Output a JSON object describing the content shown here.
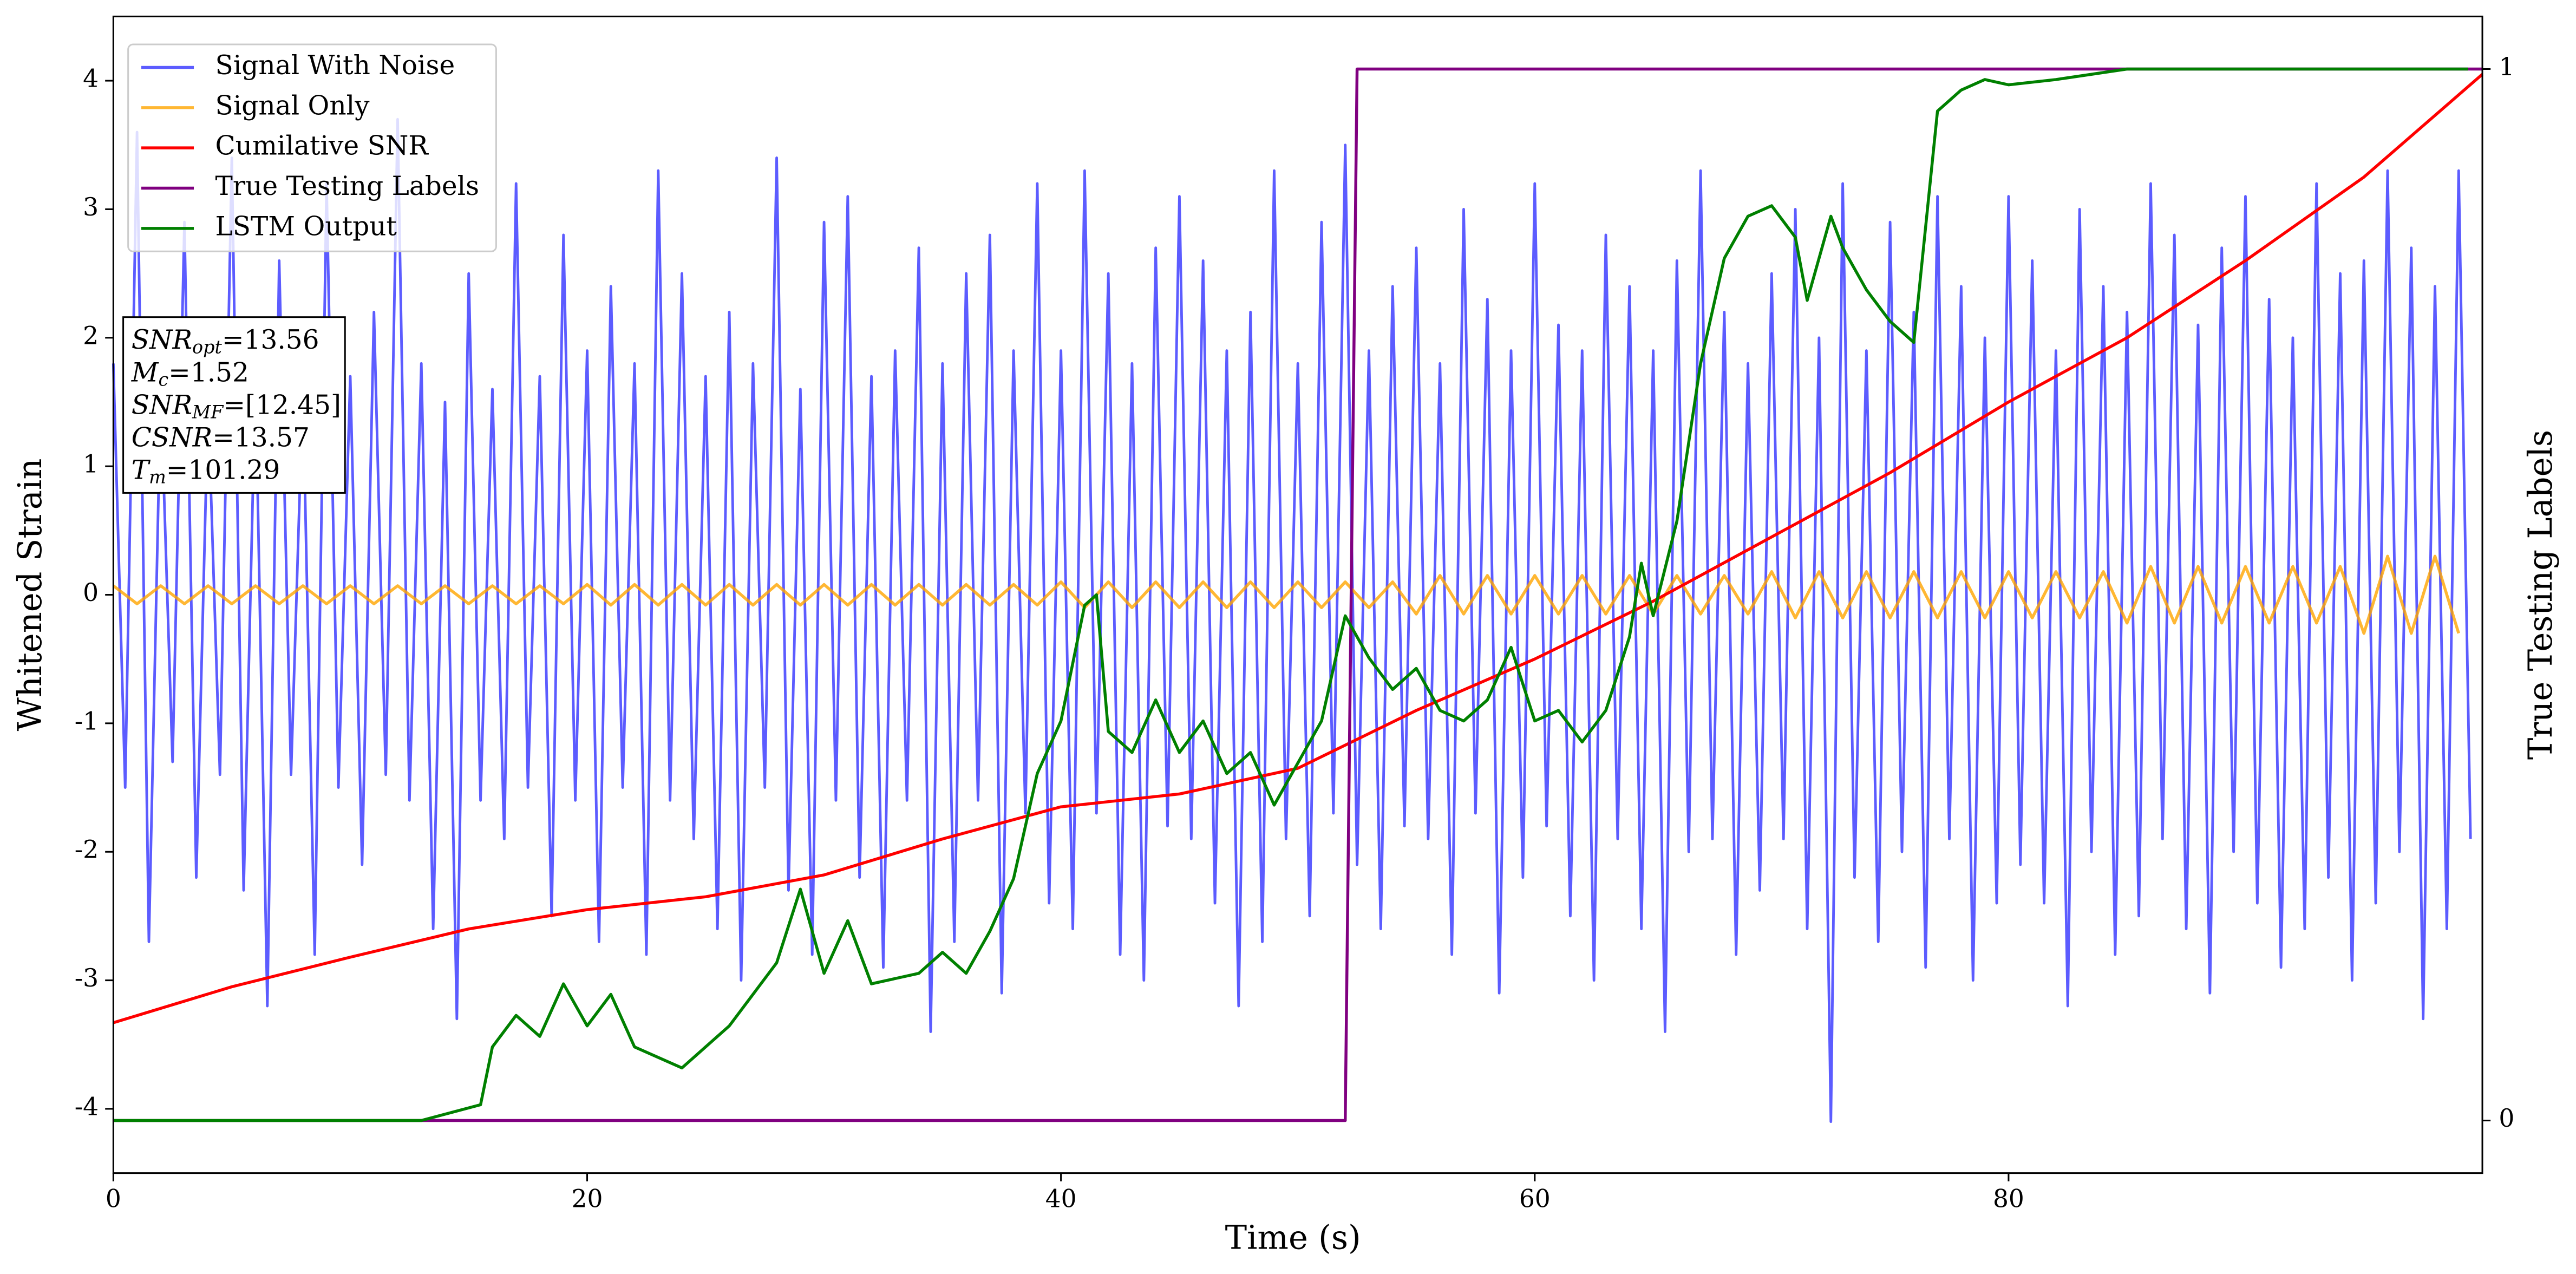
{
  "chart_data": {
    "type": "line",
    "xlabel": "Time (s)",
    "ylabel": "Whitened Strain",
    "y2label": "True Testing Labels",
    "xlim": [
      0,
      100
    ],
    "xticks": [
      0,
      20,
      40,
      60,
      80
    ],
    "ylim": [
      -4.5,
      4.5
    ],
    "yticks": [
      -4,
      -3,
      -2,
      -1,
      0,
      1,
      2,
      3,
      4
    ],
    "y2lim": [
      -0.05,
      1.05
    ],
    "y2ticks": [
      0,
      1
    ],
    "legend": "upper left",
    "annotation": [
      {
        "name": "SNR",
        "subscript": "opt",
        "value": "=13.56"
      },
      {
        "name": "M",
        "subscript": "c",
        "value": "=1.52"
      },
      {
        "name": "SNR",
        "subscript": "MF",
        "value": "=[12.45]"
      },
      {
        "name": "CSNR",
        "subscript": null,
        "value": "=13.57"
      },
      {
        "name": "T",
        "subscript": "m",
        "value": "=101.29"
      }
    ],
    "series": [
      {
        "name": "Signal With Noise",
        "color": "#3333ff",
        "x": [
          0,
          0.5,
          1,
          1.5,
          2,
          2.5,
          3,
          3.5,
          4,
          4.5,
          5,
          5.5,
          6,
          6.5,
          7,
          7.5,
          8,
          8.5,
          9,
          9.5,
          10,
          10.5,
          11,
          11.5,
          12,
          12.5,
          13,
          13.5,
          14,
          14.5,
          15,
          15.5,
          16,
          16.5,
          17,
          17.5,
          18,
          18.5,
          19,
          19.5,
          20,
          20.5,
          21,
          21.5,
          22,
          22.5,
          23,
          23.5,
          24,
          24.5,
          25,
          25.5,
          26,
          26.5,
          27,
          27.5,
          28,
          28.5,
          29,
          29.5,
          30,
          30.5,
          31,
          31.5,
          32,
          32.5,
          33,
          33.5,
          34,
          34.5,
          35,
          35.5,
          36,
          36.5,
          37,
          37.5,
          38,
          38.5,
          39,
          39.5,
          40,
          40.5,
          41,
          41.5,
          42,
          42.5,
          43,
          43.5,
          44,
          44.5,
          45,
          45.5,
          46,
          46.5,
          47,
          47.5,
          48,
          48.5,
          49,
          49.5,
          50,
          50.5,
          51,
          51.5,
          52,
          52.5,
          53,
          53.5,
          54,
          54.5,
          55,
          55.5,
          56,
          56.5,
          57,
          57.5,
          58,
          58.5,
          59,
          59.5,
          60,
          60.5,
          61,
          61.5,
          62,
          62.5,
          63,
          63.5,
          64,
          64.5,
          65,
          65.5,
          66,
          66.5,
          67,
          67.5,
          68,
          68.5,
          69,
          69.5,
          70,
          70.5,
          71,
          71.5,
          72,
          72.5,
          73,
          73.5,
          74,
          74.5,
          75,
          75.5,
          76,
          76.5,
          77,
          77.5,
          78,
          78.5,
          79,
          79.5,
          80,
          80.5,
          81,
          81.5,
          82,
          82.5,
          83,
          83.5,
          84,
          84.5,
          85,
          85.5,
          86,
          86.5,
          87,
          87.5,
          88,
          88.5,
          89,
          89.5,
          90,
          90.5,
          91,
          91.5,
          92,
          92.5,
          93,
          93.5,
          94,
          94.5,
          95,
          95.5,
          96,
          96.5,
          97,
          97.5,
          98,
          98.5,
          99,
          99.5
        ],
        "values": [
          1.8,
          -1.5,
          3.6,
          -2.7,
          1.6,
          -1.3,
          2.9,
          -2.2,
          1.5,
          -1.4,
          3.4,
          -2.3,
          1.7,
          -3.2,
          2.6,
          -1.4,
          1.6,
          -2.8,
          3.2,
          -1.5,
          1.7,
          -2.1,
          2.2,
          -1.4,
          3.7,
          -1.6,
          1.8,
          -2.6,
          1.5,
          -3.3,
          2.5,
          -1.6,
          1.6,
          -1.9,
          3.2,
          -1.5,
          1.7,
          -2.5,
          2.8,
          -1.6,
          1.9,
          -2.7,
          2.4,
          -1.5,
          1.8,
          -2.8,
          3.3,
          -1.6,
          2.5,
          -1.9,
          1.7,
          -2.6,
          2.2,
          -3.0,
          1.8,
          -1.5,
          3.4,
          -2.3,
          1.6,
          -2.8,
          2.9,
          -1.6,
          3.1,
          -2.2,
          1.7,
          -2.9,
          1.9,
          -1.6,
          2.7,
          -3.4,
          1.8,
          -2.7,
          2.5,
          -1.6,
          2.8,
          -3.1,
          1.9,
          -1.7,
          3.2,
          -2.4,
          1.9,
          -2.6,
          3.3,
          -1.7,
          2.5,
          -2.8,
          1.8,
          -3.0,
          2.7,
          -1.8,
          3.1,
          -1.9,
          2.6,
          -2.4,
          1.9,
          -3.2,
          2.2,
          -2.7,
          3.3,
          -1.9,
          1.8,
          -2.5,
          2.9,
          -1.7,
          3.5,
          -2.1,
          1.9,
          -2.6,
          2.4,
          -1.8,
          2.7,
          -1.9,
          1.8,
          -2.8,
          3.0,
          -1.7,
          2.3,
          -3.1,
          1.9,
          -2.2,
          3.2,
          -1.8,
          2.1,
          -2.5,
          1.9,
          -3.0,
          2.8,
          -1.9,
          2.4,
          -2.6,
          1.9,
          -3.4,
          2.6,
          -2.0,
          3.3,
          -1.9,
          2.2,
          -2.8,
          1.8,
          -2.3,
          2.5,
          -1.9,
          3.0,
          -2.6,
          2.0,
          -4.1,
          3.2,
          -2.2,
          1.9,
          -2.7,
          2.9,
          -2.0,
          2.2,
          -2.9,
          3.1,
          -1.9,
          2.4,
          -3.0,
          2.0,
          -2.4,
          3.1,
          -2.1,
          2.6,
          -2.4,
          1.9,
          -3.2,
          3.0,
          -2.0,
          2.4,
          -2.8,
          2.2,
          -2.5,
          3.2,
          -1.9,
          2.8,
          -2.6,
          2.1,
          -3.1,
          2.7,
          -2.0,
          3.1,
          -2.4,
          2.3,
          -2.9,
          2.0,
          -2.6,
          3.2,
          -2.2,
          2.5,
          -3.0,
          2.6,
          -2.4,
          3.3,
          -2.0,
          2.7,
          -3.3,
          2.4,
          -2.6,
          3.3,
          -1.9
        ]
      },
      {
        "name": "Signal Only",
        "color": "orange",
        "x": [
          0,
          1,
          2,
          3,
          4,
          5,
          6,
          7,
          8,
          9,
          10,
          11,
          12,
          13,
          14,
          15,
          16,
          17,
          18,
          19,
          20,
          21,
          22,
          23,
          24,
          25,
          26,
          27,
          28,
          29,
          30,
          31,
          32,
          33,
          34,
          35,
          36,
          37,
          38,
          39,
          40,
          41,
          42,
          43,
          44,
          45,
          46,
          47,
          48,
          49,
          50,
          51,
          52,
          53,
          54,
          55,
          56,
          57,
          58,
          59,
          60,
          61,
          62,
          63,
          64,
          65,
          66,
          67,
          68,
          69,
          70,
          71,
          72,
          73,
          74,
          75,
          76,
          77,
          78,
          79,
          80,
          81,
          82,
          83,
          84,
          85,
          86,
          87,
          88,
          89,
          90,
          91,
          92,
          93,
          94,
          95,
          96,
          97,
          98,
          99
        ],
        "values": [
          0.07,
          -0.07,
          0.07,
          -0.07,
          0.07,
          -0.07,
          0.07,
          -0.07,
          0.07,
          -0.07,
          0.07,
          -0.07,
          0.07,
          -0.07,
          0.07,
          -0.07,
          0.07,
          -0.07,
          0.07,
          -0.07,
          0.08,
          -0.08,
          0.08,
          -0.08,
          0.08,
          -0.08,
          0.08,
          -0.08,
          0.08,
          -0.08,
          0.08,
          -0.08,
          0.08,
          -0.08,
          0.08,
          -0.08,
          0.08,
          -0.08,
          0.08,
          -0.08,
          0.1,
          -0.1,
          0.1,
          -0.1,
          0.1,
          -0.1,
          0.1,
          -0.1,
          0.1,
          -0.1,
          0.1,
          -0.1,
          0.1,
          -0.1,
          0.1,
          -0.15,
          0.15,
          -0.15,
          0.15,
          -0.15,
          0.15,
          -0.15,
          0.15,
          -0.15,
          0.15,
          -0.15,
          0.15,
          -0.15,
          0.15,
          -0.15,
          0.18,
          -0.18,
          0.18,
          -0.18,
          0.18,
          -0.18,
          0.18,
          -0.18,
          0.18,
          -0.18,
          0.18,
          -0.18,
          0.18,
          -0.18,
          0.18,
          -0.22,
          0.22,
          -0.22,
          0.22,
          -0.22,
          0.22,
          -0.22,
          0.22,
          -0.22,
          0.22,
          -0.3,
          0.3,
          -0.3,
          0.3,
          -0.3
        ]
      },
      {
        "name": "Cumilative SNR",
        "color": "red",
        "x": [
          0,
          5,
          10,
          15,
          20,
          25,
          30,
          35,
          40,
          45,
          50,
          55,
          60,
          65,
          70,
          75,
          80,
          85,
          90,
          95,
          100
        ],
        "values": [
          -3.33,
          -3.05,
          -2.82,
          -2.6,
          -2.45,
          -2.35,
          -2.18,
          -1.9,
          -1.65,
          -1.55,
          -1.35,
          -0.9,
          -0.5,
          -0.05,
          0.45,
          0.95,
          1.5,
          2.0,
          2.6,
          3.25,
          4.05
        ]
      },
      {
        "name": "True Testing Labels",
        "color": "purple",
        "axis": "y2",
        "x": [
          0,
          52,
          52.5,
          100
        ],
        "values": [
          0,
          0,
          1,
          1
        ]
      },
      {
        "name": "LSTM Output",
        "color": "green",
        "axis": "y2",
        "x": [
          0,
          13,
          15.5,
          16,
          17,
          18,
          19,
          20,
          21,
          22,
          24,
          25,
          26,
          28,
          29,
          30,
          31,
          32,
          34,
          35,
          36,
          37,
          38,
          39,
          40,
          41,
          41.5,
          42,
          43,
          44,
          45,
          46,
          47,
          48,
          49,
          50,
          51,
          52,
          53,
          54,
          55,
          56,
          57,
          58,
          59,
          60,
          61,
          62,
          63,
          64,
          64.5,
          65,
          66,
          67,
          68,
          69,
          70,
          71,
          71.5,
          72.5,
          73,
          74,
          75,
          76,
          77,
          78,
          79,
          80,
          82,
          85,
          99.4
        ],
        "values": [
          0,
          0,
          0.015,
          0.07,
          0.1,
          0.08,
          0.13,
          0.09,
          0.12,
          0.07,
          0.05,
          0.07,
          0.09,
          0.15,
          0.22,
          0.14,
          0.19,
          0.13,
          0.14,
          0.16,
          0.14,
          0.18,
          0.23,
          0.33,
          0.38,
          0.49,
          0.5,
          0.37,
          0.35,
          0.4,
          0.35,
          0.38,
          0.33,
          0.35,
          0.3,
          0.34,
          0.38,
          0.48,
          0.44,
          0.41,
          0.43,
          0.39,
          0.38,
          0.4,
          0.45,
          0.38,
          0.39,
          0.36,
          0.39,
          0.46,
          0.53,
          0.48,
          0.57,
          0.72,
          0.82,
          0.86,
          0.87,
          0.84,
          0.78,
          0.86,
          0.83,
          0.79,
          0.76,
          0.74,
          0.96,
          0.98,
          0.99,
          0.985,
          0.99,
          1.0,
          1.0
        ]
      }
    ]
  }
}
